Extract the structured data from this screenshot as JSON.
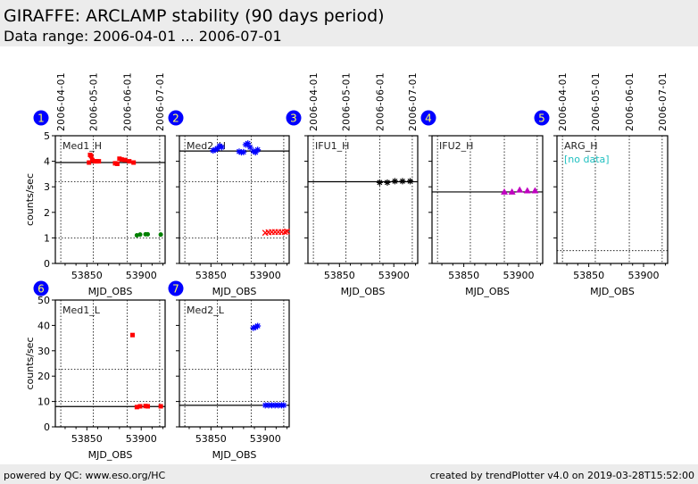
{
  "header": {
    "title": "GIRAFFE: ARCLAMP stability (90 days period)",
    "subtitle": "Data range: 2006-04-01 ... 2006-07-01"
  },
  "footer": {
    "left": "powered by QC: www.eso.org/HC",
    "right": "created by trendPlotter v4.0 on 2019-03-28T15:52:00"
  },
  "chart_data": [
    {
      "id": "1",
      "type": "scatter",
      "label": "Med1_H",
      "xlabel": "MJD_OBS",
      "ylabel": "counts/sec",
      "xlim": [
        53821,
        53922
      ],
      "ylim": [
        0,
        5
      ],
      "yticks": [
        0,
        1,
        2,
        3,
        4,
        5
      ],
      "xticks": [
        53850,
        53900
      ],
      "date_ticks": [
        "2006-04-01",
        "2006-05-01",
        "2006-06-01",
        "2006-07-01"
      ],
      "date_mjd": [
        53826,
        53856,
        53887,
        53917
      ],
      "ref_line": 3.95,
      "dotted_lines": [
        3.2,
        1.0
      ],
      "series": [
        {
          "color": "#ff0000",
          "marker": "square",
          "x": [
            53852,
            53853,
            53854,
            53855,
            53857,
            53859,
            53861,
            53876,
            53878,
            53880,
            53882,
            53885,
            53889,
            53893
          ],
          "y": [
            3.95,
            4.25,
            4.2,
            4.05,
            4.0,
            4.0,
            4.0,
            3.92,
            3.9,
            4.1,
            4.07,
            4.05,
            4.0,
            3.95
          ]
        },
        {
          "color": "#008000",
          "marker": "circle",
          "x": [
            53896,
            53899,
            53904,
            53906,
            53918
          ],
          "y": [
            1.1,
            1.13,
            1.14,
            1.14,
            1.13
          ]
        }
      ]
    },
    {
      "id": "2",
      "type": "scatter",
      "label": "Med2_H",
      "xlabel": "MJD_OBS",
      "ylabel": "",
      "xlim": [
        53821,
        53922
      ],
      "ylim": [
        0,
        5
      ],
      "yticks": [
        0,
        1,
        2,
        3,
        4,
        5
      ],
      "xticks": [
        53850,
        53900
      ],
      "ref_line": 4.4,
      "dotted_lines": [
        3.2,
        1.0
      ],
      "series": [
        {
          "color": "#0000ff",
          "marker": "star",
          "x": [
            53852,
            53854,
            53856,
            53858,
            53860,
            53876,
            53878,
            53880,
            53882,
            53884,
            53886,
            53889,
            53891,
            53893
          ],
          "y": [
            4.42,
            4.45,
            4.5,
            4.6,
            4.55,
            4.38,
            4.35,
            4.36,
            4.65,
            4.7,
            4.55,
            4.4,
            4.35,
            4.45
          ]
        },
        {
          "color": "#ff0000",
          "marker": "x",
          "x": [
            53900,
            53903,
            53906,
            53909,
            53912,
            53915,
            53918,
            53920
          ],
          "y": [
            1.2,
            1.22,
            1.23,
            1.23,
            1.23,
            1.23,
            1.23,
            1.25
          ]
        }
      ]
    },
    {
      "id": "3",
      "type": "scatter",
      "label": "IFU1_H",
      "xlabel": "MJD_OBS",
      "ylabel": "",
      "xlim": [
        53821,
        53922
      ],
      "ylim": [
        0,
        5
      ],
      "yticks": [
        0,
        1,
        2,
        3,
        4,
        5
      ],
      "xticks": [
        53850,
        53900
      ],
      "date_ticks": [
        "2006-04-01",
        "2006-05-01",
        "2006-06-01",
        "2006-07-01"
      ],
      "date_mjd": [
        53826,
        53856,
        53887,
        53917
      ],
      "ref_line": 3.2,
      "dotted_lines": [],
      "series": [
        {
          "color": "#000000",
          "marker": "star",
          "x": [
            53887,
            53894,
            53901,
            53908,
            53915
          ],
          "y": [
            3.17,
            3.17,
            3.22,
            3.22,
            3.22
          ]
        }
      ]
    },
    {
      "id": "4",
      "type": "scatter",
      "label": "IFU2_H",
      "xlabel": "MJD_OBS",
      "ylabel": "",
      "xlim": [
        53821,
        53922
      ],
      "ylim": [
        0,
        5
      ],
      "yticks": [
        0,
        1,
        2,
        3,
        4,
        5
      ],
      "xticks": [
        53850,
        53900
      ],
      "ref_line": 2.8,
      "dotted_lines": [],
      "series": [
        {
          "color": "#c000c0",
          "marker": "triangle",
          "x": [
            53887,
            53894,
            53901,
            53908,
            53915
          ],
          "y": [
            2.8,
            2.8,
            2.88,
            2.85,
            2.85
          ]
        }
      ]
    },
    {
      "id": "5",
      "type": "scatter",
      "label": "ARG_H",
      "note": "[no data]",
      "xlabel": "MJD_OBS",
      "ylabel": "",
      "xlim": [
        53821,
        53922
      ],
      "ylim": [
        0,
        5
      ],
      "yticks": [
        0,
        1,
        2,
        3,
        4,
        5
      ],
      "xticks": [
        53850,
        53900
      ],
      "date_ticks": [
        "2006-04-01",
        "2006-05-01",
        "2006-06-01",
        "2006-07-01"
      ],
      "date_mjd": [
        53826,
        53856,
        53887,
        53917
      ],
      "dotted_lines": [
        0.5
      ],
      "series": []
    },
    {
      "id": "6",
      "type": "scatter",
      "label": "Med1_L",
      "xlabel": "MJD_OBS",
      "ylabel": "counts/sec",
      "xlim": [
        53821,
        53922
      ],
      "ylim": [
        0,
        50
      ],
      "yticks": [
        0,
        10,
        20,
        30,
        40,
        50
      ],
      "xticks": [
        53850,
        53900
      ],
      "ref_line": 8.0,
      "dotted_lines": [
        22.7,
        10.0
      ],
      "series": [
        {
          "color": "#ff0000",
          "marker": "square",
          "x": [
            53892,
            53896,
            53899,
            53904,
            53906,
            53918
          ],
          "y": [
            36.2,
            7.8,
            8.1,
            8.2,
            8.1,
            8.1
          ]
        }
      ]
    },
    {
      "id": "7",
      "type": "scatter",
      "label": "Med2_L",
      "xlabel": "MJD_OBS",
      "ylabel": "",
      "xlim": [
        53821,
        53922
      ],
      "ylim": [
        0,
        50
      ],
      "yticks": [
        0,
        10,
        20,
        30,
        40,
        50
      ],
      "xticks": [
        53850,
        53900
      ],
      "ref_line": 8.5,
      "dotted_lines": [
        22.7,
        10.0
      ],
      "series": [
        {
          "color": "#0000ff",
          "marker": "star",
          "x": [
            53889,
            53891,
            53893,
            53900,
            53903,
            53906,
            53909,
            53912,
            53915,
            53917
          ],
          "y": [
            39.0,
            39.3,
            39.8,
            8.5,
            8.5,
            8.5,
            8.5,
            8.5,
            8.5,
            8.5
          ]
        }
      ]
    }
  ]
}
